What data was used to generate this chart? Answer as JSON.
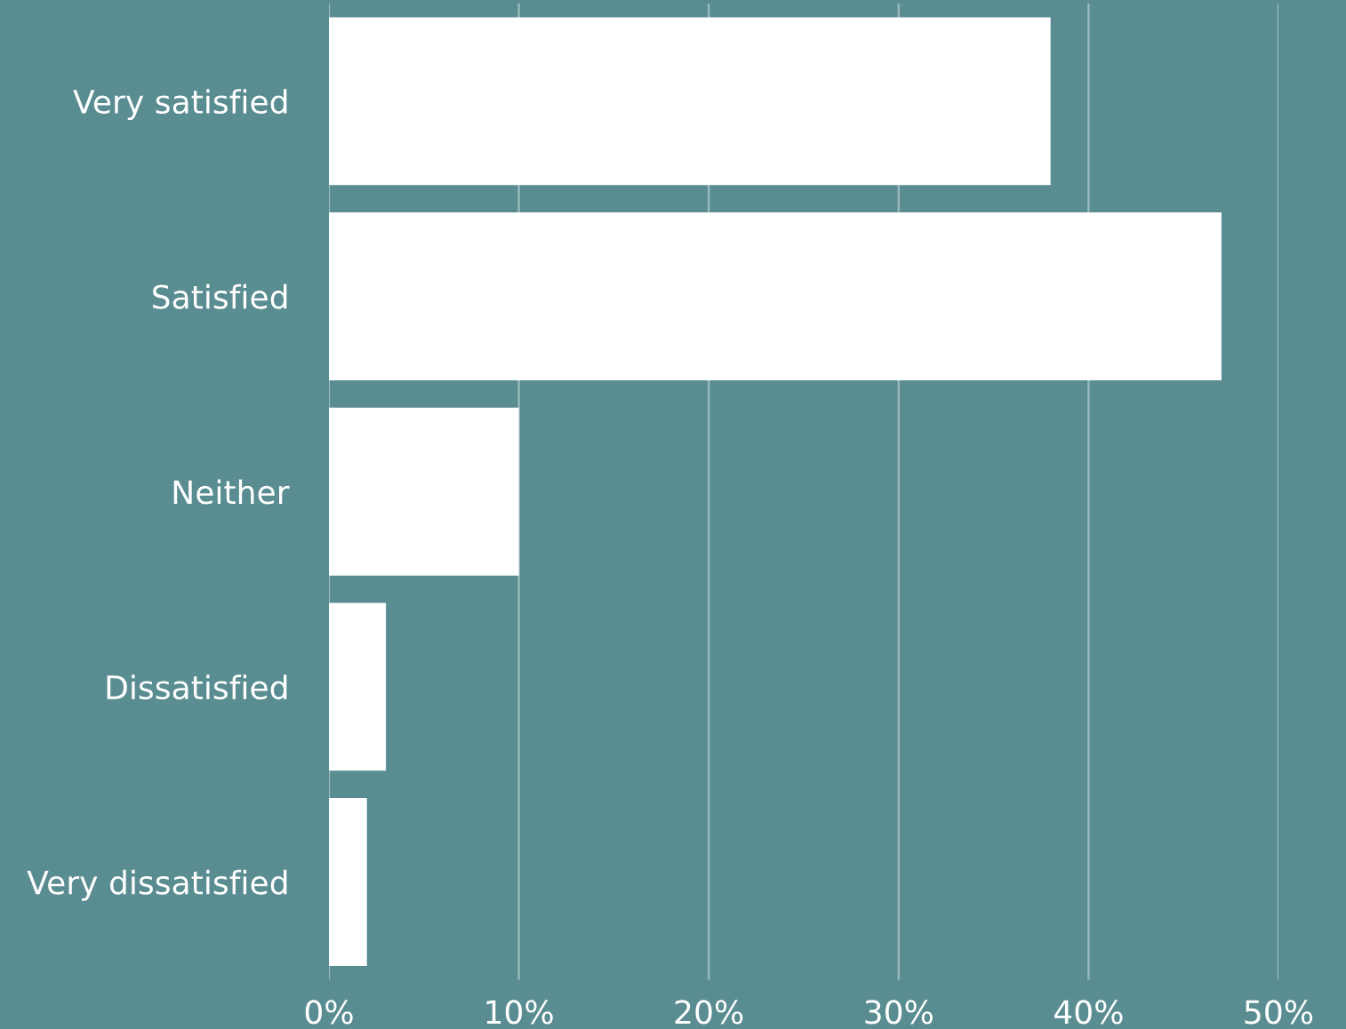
{
  "chart_data": {
    "type": "bar",
    "orientation": "horizontal",
    "categories": [
      "Very satisfied",
      "Satisfied",
      "Neither",
      "Dissatisfied",
      "Very dissatisfied"
    ],
    "values": [
      38,
      47,
      10,
      3,
      2
    ],
    "color": "#ffffff",
    "xlim": [
      0,
      50
    ],
    "xticks": [
      {
        "value": 0,
        "label": "0%"
      },
      {
        "value": 10,
        "label": "10%"
      },
      {
        "value": 20,
        "label": "20%"
      },
      {
        "value": 30,
        "label": "30%"
      },
      {
        "value": 40,
        "label": "40%"
      },
      {
        "value": 50,
        "label": "50%"
      }
    ],
    "grid": "x"
  }
}
